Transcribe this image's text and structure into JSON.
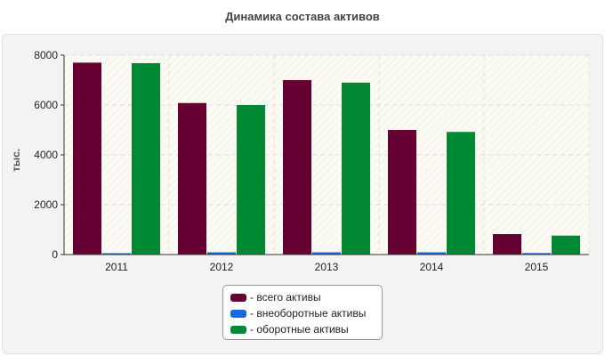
{
  "chart_data": {
    "type": "bar",
    "title": "Динамика состава активов",
    "xlabel": "",
    "ylabel": "тыс.",
    "ylim": [
      0,
      8000
    ],
    "yticks": [
      0,
      2000,
      4000,
      6000,
      8000
    ],
    "categories": [
      "2011",
      "2012",
      "2013",
      "2014",
      "2015"
    ],
    "grid": true,
    "legend_position": "bottom",
    "series": [
      {
        "name": "- всего активы",
        "color": "#660033",
        "values": [
          7700,
          6080,
          7000,
          5000,
          820
        ]
      },
      {
        "name": "- внеоборотные активы",
        "color": "#1a66dd",
        "values": [
          30,
          90,
          90,
          90,
          60
        ]
      },
      {
        "name": "- оборотные активы",
        "color": "#008833",
        "values": [
          7680,
          6000,
          6900,
          4920,
          760
        ]
      }
    ]
  }
}
